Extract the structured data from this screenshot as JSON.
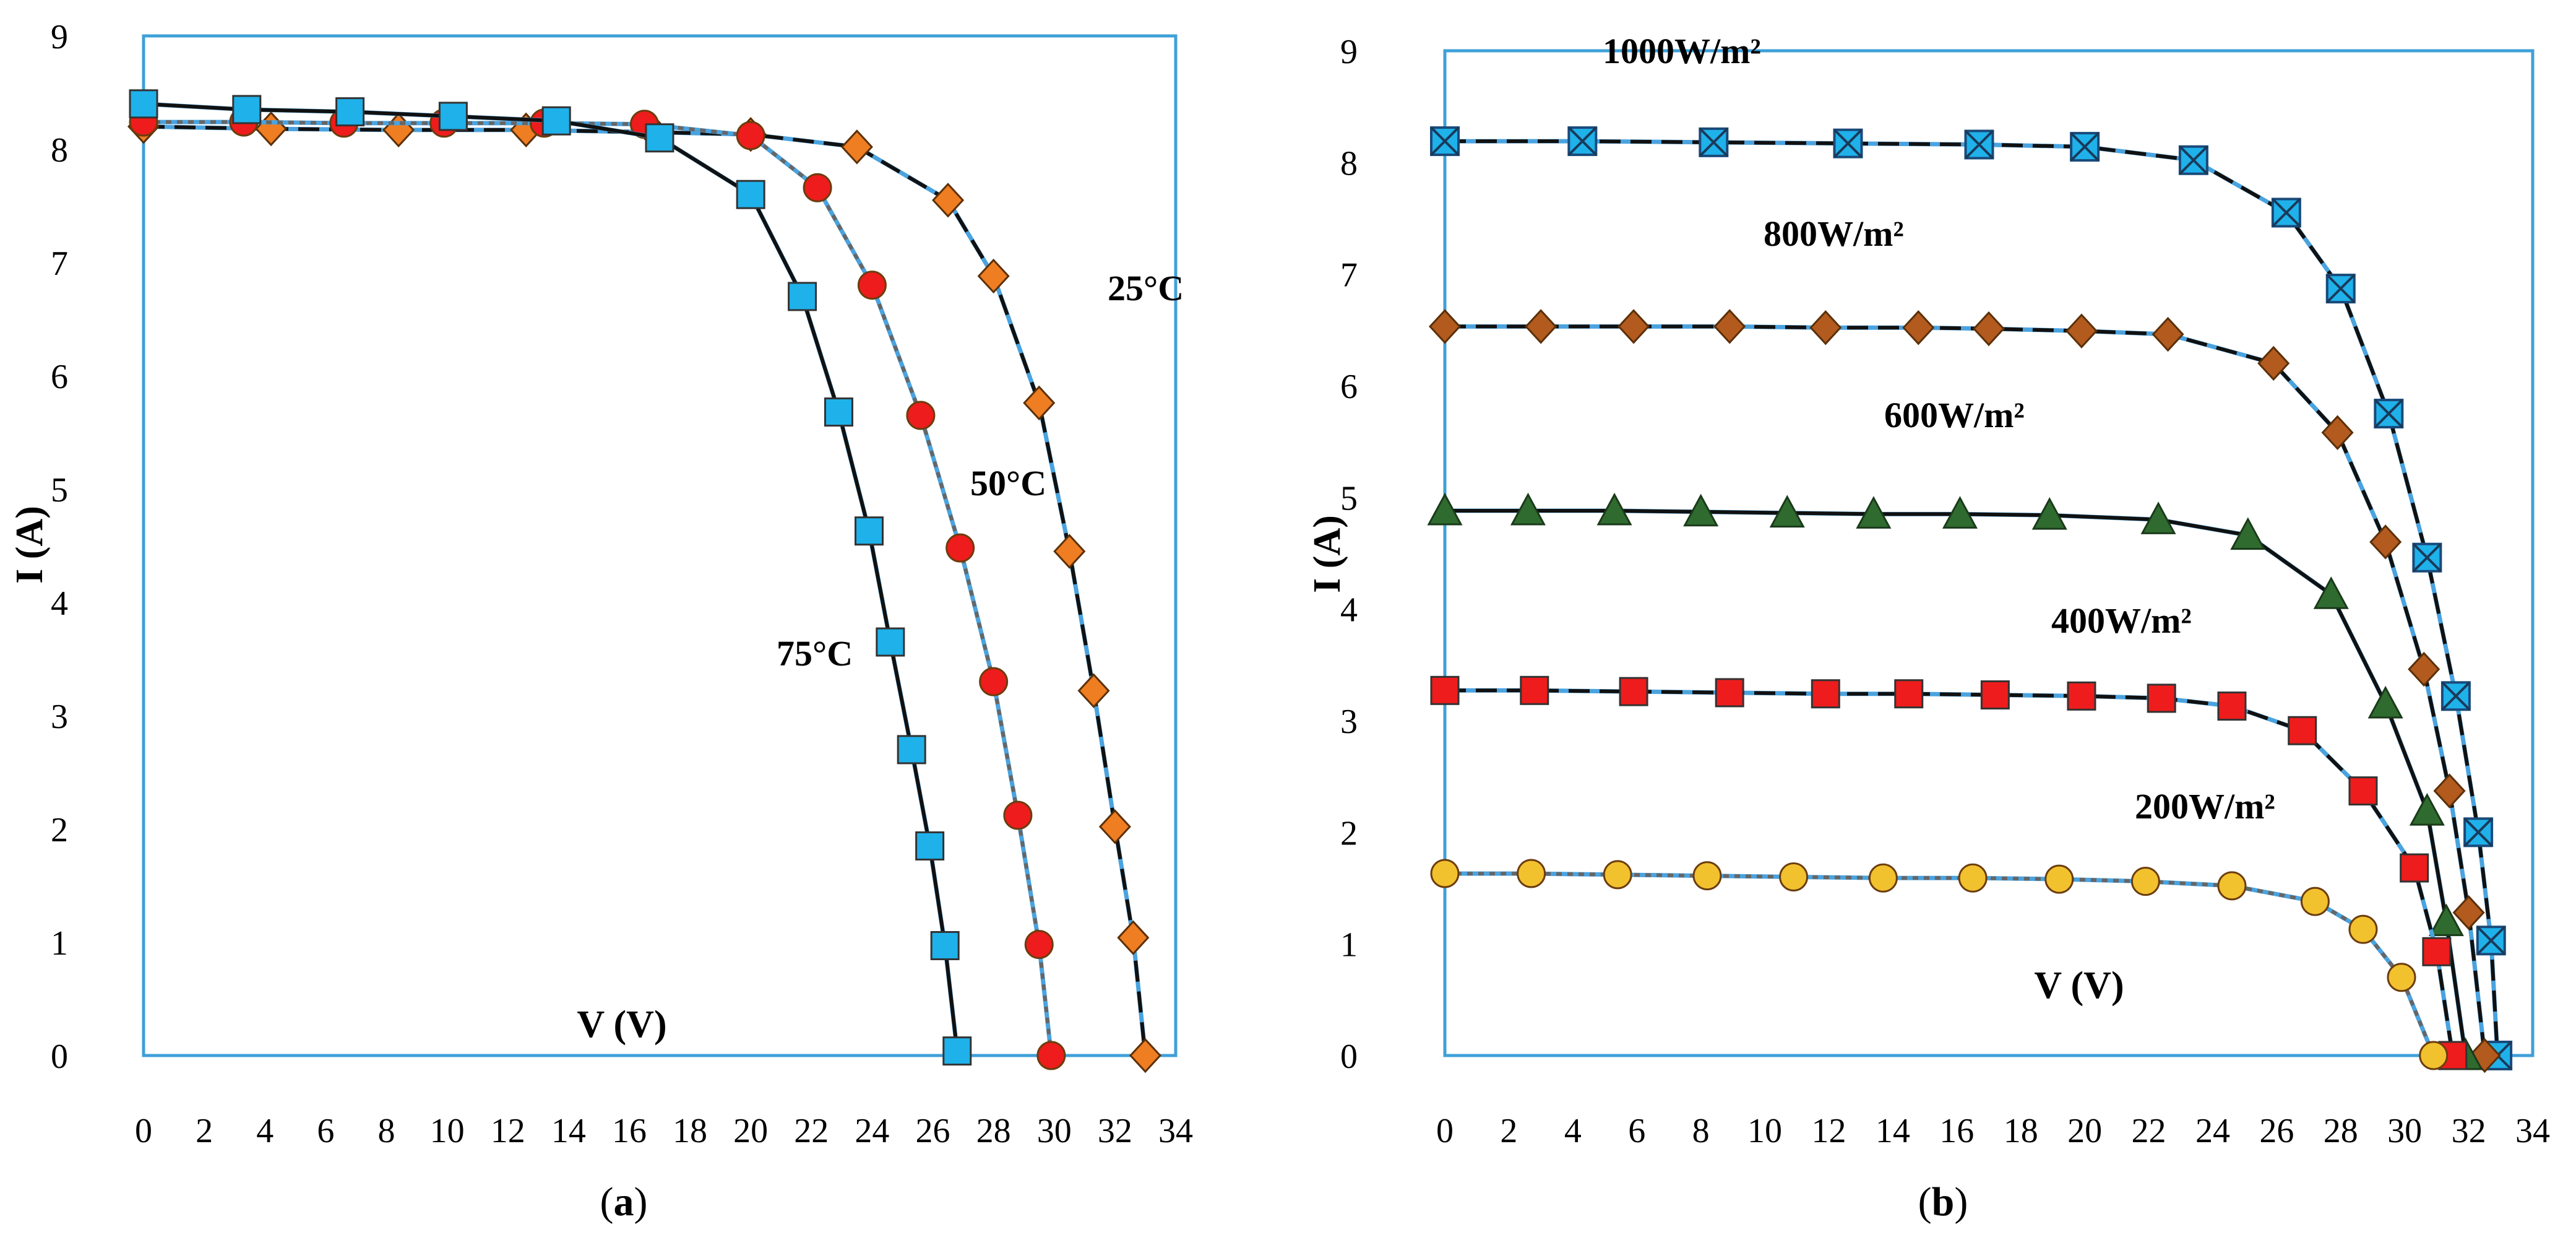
{
  "chart_data": [
    {
      "id": "a",
      "type": "line",
      "panel_label": "a",
      "xlabel": "V (V)",
      "ylabel": "I (A)",
      "xlim": [
        0,
        34
      ],
      "ylim": [
        0,
        9
      ],
      "xticks": [
        "0",
        "2",
        "4",
        "6",
        "8",
        "10",
        "12",
        "14",
        "16",
        "18",
        "20",
        "22",
        "24",
        "26",
        "28",
        "30",
        "32",
        "34"
      ],
      "yticks": [
        "0",
        "1",
        "2",
        "3",
        "4",
        "5",
        "6",
        "7",
        "8",
        "9"
      ],
      "annotations": [
        "25°C",
        "50°C",
        "75°C"
      ],
      "series": [
        {
          "name": "25°C",
          "marker": "diamond",
          "marker_color": "#ef7d22",
          "line_style": "dashed",
          "x": [
            0,
            4.2,
            8.4,
            12.6,
            16.8,
            20.0,
            23.5,
            26.5,
            28.0,
            29.5,
            30.5,
            31.3,
            32.0,
            32.6,
            33.0
          ],
          "y": [
            8.2,
            8.18,
            8.17,
            8.17,
            8.15,
            8.13,
            8.02,
            7.55,
            6.88,
            5.76,
            4.45,
            3.22,
            2.02,
            1.04,
            0.0
          ]
        },
        {
          "name": "50°C",
          "marker": "circle",
          "marker_color": "#ee1c1c",
          "line_style": "dotted",
          "x": [
            0,
            3.3,
            6.6,
            9.9,
            13.2,
            16.5,
            20.0,
            22.2,
            24.0,
            25.6,
            26.9,
            28.0,
            28.8,
            29.5,
            29.9
          ],
          "y": [
            8.24,
            8.24,
            8.23,
            8.23,
            8.23,
            8.22,
            8.12,
            7.66,
            6.8,
            5.65,
            4.48,
            3.3,
            2.12,
            0.98,
            0.0
          ]
        },
        {
          "name": "75°C",
          "marker": "square",
          "marker_color": "#1fb1ea",
          "line_style": "solid",
          "x": [
            0,
            3.4,
            6.8,
            10.2,
            13.6,
            17.0,
            20.0,
            21.7,
            22.9,
            23.9,
            24.6,
            25.3,
            25.9,
            26.4,
            26.8
          ],
          "y": [
            8.4,
            8.35,
            8.33,
            8.29,
            8.25,
            8.1,
            7.6,
            6.7,
            5.68,
            4.63,
            3.65,
            2.7,
            1.85,
            0.97,
            0.04
          ]
        }
      ]
    },
    {
      "id": "b",
      "type": "line",
      "panel_label": "b",
      "xlabel": "V (V)",
      "ylabel": "I (A)",
      "xlim": [
        0,
        34
      ],
      "ylim": [
        0,
        9
      ],
      "xticks": [
        "0",
        "2",
        "4",
        "6",
        "8",
        "10",
        "12",
        "14",
        "16",
        "18",
        "20",
        "22",
        "24",
        "26",
        "28",
        "30",
        "32",
        "34"
      ],
      "yticks": [
        "0",
        "1",
        "2",
        "3",
        "4",
        "5",
        "6",
        "7",
        "8",
        "9"
      ],
      "annotations": [
        "1000W/m²",
        "800W/m²",
        "600W/m²",
        "400W/m²",
        "200W/m²"
      ],
      "series": [
        {
          "name": "1000W/m²",
          "marker": "square-x",
          "marker_color": "#1fb1ea",
          "line_style": "dashed",
          "x": [
            0,
            4.3,
            8.4,
            12.6,
            16.7,
            20.0,
            23.4,
            26.3,
            28.0,
            29.5,
            30.7,
            31.6,
            32.3,
            32.7,
            32.9
          ],
          "y": [
            8.19,
            8.19,
            8.18,
            8.17,
            8.16,
            8.14,
            8.02,
            7.55,
            6.87,
            5.75,
            4.46,
            3.22,
            2.0,
            1.03,
            0.0
          ]
        },
        {
          "name": "800W/m²",
          "marker": "diamond",
          "marker_color": "#b35a1f",
          "line_style": "dashed",
          "x": [
            0,
            3.0,
            5.9,
            8.9,
            11.9,
            14.8,
            17.0,
            19.9,
            22.6,
            25.9,
            27.9,
            29.4,
            30.6,
            31.4,
            32.0,
            32.5
          ],
          "y": [
            6.53,
            6.53,
            6.53,
            6.53,
            6.52,
            6.52,
            6.51,
            6.49,
            6.46,
            6.2,
            5.58,
            4.6,
            3.46,
            2.37,
            1.28,
            0.0
          ]
        },
        {
          "name": "600W/m²",
          "marker": "triangle",
          "marker_color": "#2f6b2f",
          "line_style": "solid",
          "x": [
            0,
            2.6,
            5.3,
            8.0,
            10.7,
            13.4,
            16.1,
            18.9,
            22.3,
            25.1,
            27.7,
            29.4,
            30.7,
            31.3,
            31.9
          ],
          "y": [
            4.88,
            4.88,
            4.88,
            4.87,
            4.86,
            4.85,
            4.85,
            4.84,
            4.8,
            4.66,
            4.13,
            3.15,
            2.19,
            1.2,
            0.0
          ]
        },
        {
          "name": "400W/m²",
          "marker": "square",
          "marker_color": "#ee1c1c",
          "line_style": "dashed",
          "x": [
            0,
            2.8,
            5.9,
            8.9,
            11.9,
            14.5,
            17.2,
            19.9,
            22.4,
            24.6,
            26.8,
            28.7,
            30.3,
            31.0,
            31.5
          ],
          "y": [
            3.27,
            3.27,
            3.26,
            3.25,
            3.24,
            3.24,
            3.23,
            3.22,
            3.2,
            3.13,
            2.91,
            2.37,
            1.68,
            0.93,
            0.0
          ]
        },
        {
          "name": "200W/m²",
          "marker": "circle",
          "marker_color": "#f2c12e",
          "line_style": "dotted",
          "x": [
            0,
            2.7,
            5.4,
            8.2,
            10.9,
            13.7,
            16.5,
            19.2,
            21.9,
            24.6,
            27.2,
            28.7,
            29.9,
            30.9
          ],
          "y": [
            1.63,
            1.63,
            1.62,
            1.61,
            1.6,
            1.59,
            1.59,
            1.58,
            1.56,
            1.52,
            1.38,
            1.13,
            0.7,
            0.0
          ]
        }
      ]
    }
  ]
}
